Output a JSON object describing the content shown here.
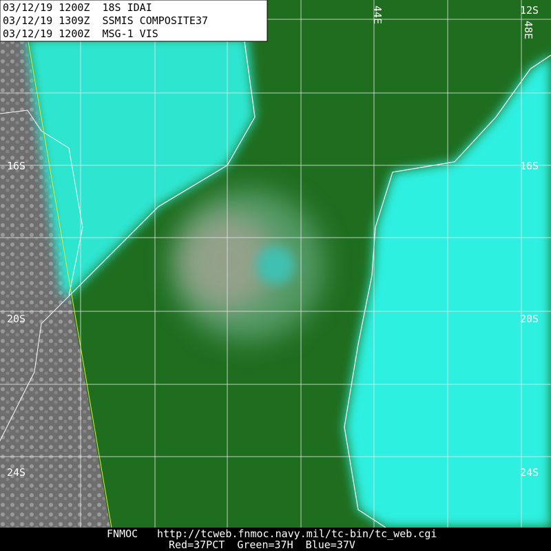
{
  "header": {
    "lines": [
      "03/12/19 1200Z  18S IDAI",
      "03/12/19 1309Z  SSMIS COMPOSITE37",
      "03/12/19 1200Z  MSG-1 VIS"
    ]
  },
  "latitude_labels": {
    "left": [
      "16S",
      "20S",
      "24S"
    ],
    "right": [
      "12S",
      "16S",
      "20S",
      "24S"
    ]
  },
  "longitude_labels": [
    "44E",
    "48E"
  ],
  "footer": {
    "source": "FNMOC",
    "url": "http://tcweb.fnmoc.navy.mil/tc-bin/tc_web.cgi",
    "channels": "Red=37PCT  Green=37H  Blue=37V"
  }
}
